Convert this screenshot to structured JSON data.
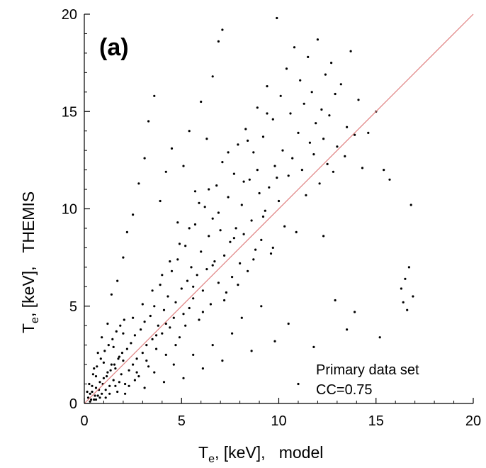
{
  "chart_data": {
    "type": "scatter",
    "panel_label": "(a)",
    "xlabel": {
      "base": "T",
      "sub": "e",
      "rest": ", [keV],   model"
    },
    "ylabel": {
      "base": "T",
      "sub": "e",
      "rest": ", [keV],   THEMIS"
    },
    "xlim": [
      0,
      20
    ],
    "ylim": [
      0,
      20
    ],
    "xticks": [
      0,
      5,
      10,
      15,
      20
    ],
    "yticks": [
      0,
      5,
      10,
      15,
      20
    ],
    "grid": false,
    "annotations": [
      "Primary data set",
      "CC=0.75"
    ],
    "reference_line": {
      "kind": "y=x",
      "color": "#e08080"
    },
    "point_color": "#000000",
    "points": [
      [
        0.2,
        0.3
      ],
      [
        0.3,
        0.1
      ],
      [
        0.4,
        0.6
      ],
      [
        0.5,
        0.2
      ],
      [
        0.6,
        0.8
      ],
      [
        0.7,
        0.4
      ],
      [
        0.8,
        1.1
      ],
      [
        0.9,
        0.5
      ],
      [
        1.0,
        1.3
      ],
      [
        1.1,
        0.7
      ],
      [
        1.2,
        1.6
      ],
      [
        1.3,
        0.9
      ],
      [
        1.4,
        2.0
      ],
      [
        1.5,
        1.2
      ],
      [
        1.6,
        1.8
      ],
      [
        1.7,
        0.6
      ],
      [
        1.8,
        2.4
      ],
      [
        1.9,
        1.5
      ],
      [
        2.0,
        2.2
      ],
      [
        2.1,
        1.0
      ],
      [
        2.2,
        2.8
      ],
      [
        2.3,
        1.7
      ],
      [
        2.4,
        3.1
      ],
      [
        2.5,
        2.0
      ],
      [
        2.6,
        3.5
      ],
      [
        2.7,
        2.3
      ],
      [
        2.8,
        1.4
      ],
      [
        2.9,
        3.8
      ],
      [
        3.0,
        2.6
      ],
      [
        3.1,
        4.2
      ],
      [
        3.2,
        3.0
      ],
      [
        3.3,
        1.9
      ],
      [
        3.4,
        4.5
      ],
      [
        3.5,
        3.3
      ],
      [
        3.6,
        5.0
      ],
      [
        3.7,
        2.8
      ],
      [
        3.8,
        4.0
      ],
      [
        3.9,
        6.1
      ],
      [
        4.0,
        3.6
      ],
      [
        4.1,
        4.8
      ],
      [
        4.2,
        2.5
      ],
      [
        4.3,
        5.5
      ],
      [
        4.4,
        3.9
      ],
      [
        4.5,
        6.8
      ],
      [
        4.6,
        4.4
      ],
      [
        4.7,
        5.2
      ],
      [
        4.8,
        7.4
      ],
      [
        4.9,
        3.4
      ],
      [
        5.0,
        5.9
      ],
      [
        5.1,
        4.6
      ],
      [
        5.2,
        8.1
      ],
      [
        5.3,
        6.3
      ],
      [
        5.4,
        4.9
      ],
      [
        5.5,
        7.0
      ],
      [
        5.6,
        5.4
      ],
      [
        5.7,
        9.2
      ],
      [
        5.8,
        6.6
      ],
      [
        5.9,
        4.3
      ],
      [
        6.0,
        7.8
      ],
      [
        6.1,
        5.8
      ],
      [
        6.2,
        10.1
      ],
      [
        6.3,
        6.9
      ],
      [
        6.4,
        8.6
      ],
      [
        6.5,
        5.1
      ],
      [
        6.6,
        9.5
      ],
      [
        6.7,
        7.3
      ],
      [
        6.8,
        11.2
      ],
      [
        6.9,
        6.2
      ],
      [
        7.0,
        8.9
      ],
      [
        7.1,
        12.4
      ],
      [
        7.2,
        7.6
      ],
      [
        7.3,
        5.7
      ],
      [
        7.4,
        10.6
      ],
      [
        7.5,
        8.3
      ],
      [
        7.6,
        6.5
      ],
      [
        7.7,
        11.8
      ],
      [
        7.8,
        9.0
      ],
      [
        7.9,
        13.3
      ],
      [
        8.0,
        7.2
      ],
      [
        8.1,
        10.2
      ],
      [
        8.2,
        8.7
      ],
      [
        8.3,
        14.1
      ],
      [
        8.4,
        6.8
      ],
      [
        8.5,
        11.5
      ],
      [
        8.6,
        9.4
      ],
      [
        8.7,
        12.9
      ],
      [
        8.8,
        7.9
      ],
      [
        8.9,
        15.2
      ],
      [
        9.0,
        10.8
      ],
      [
        9.1,
        8.4
      ],
      [
        9.2,
        13.7
      ],
      [
        9.3,
        9.9
      ],
      [
        9.4,
        16.3
      ],
      [
        9.5,
        11.1
      ],
      [
        9.6,
        7.7
      ],
      [
        9.7,
        14.6
      ],
      [
        9.8,
        12.2
      ],
      [
        9.9,
        19.8
      ],
      [
        10.0,
        10.4
      ],
      [
        10.1,
        15.8
      ],
      [
        10.2,
        13.0
      ],
      [
        10.3,
        9.1
      ],
      [
        10.4,
        17.2
      ],
      [
        10.5,
        11.7
      ],
      [
        10.6,
        14.9
      ],
      [
        10.7,
        12.6
      ],
      [
        10.8,
        18.3
      ],
      [
        10.9,
        8.8
      ],
      [
        11.0,
        13.9
      ],
      [
        11.1,
        16.6
      ],
      [
        11.2,
        12.0
      ],
      [
        11.3,
        15.4
      ],
      [
        11.4,
        10.7
      ],
      [
        11.5,
        17.8
      ],
      [
        11.6,
        13.4
      ],
      [
        11.7,
        16.0
      ],
      [
        11.8,
        12.8
      ],
      [
        11.9,
        14.4
      ],
      [
        12.0,
        18.7
      ],
      [
        12.1,
        11.3
      ],
      [
        12.2,
        15.1
      ],
      [
        12.3,
        13.6
      ],
      [
        12.4,
        16.9
      ],
      [
        12.5,
        12.3
      ],
      [
        12.6,
        14.8
      ],
      [
        12.7,
        17.5
      ],
      [
        12.8,
        11.9
      ],
      [
        12.9,
        15.9
      ],
      [
        13.0,
        13.2
      ],
      [
        13.2,
        16.4
      ],
      [
        13.4,
        12.7
      ],
      [
        13.5,
        14.2
      ],
      [
        13.7,
        18.1
      ],
      [
        13.9,
        13.8
      ],
      [
        14.1,
        15.6
      ],
      [
        14.3,
        12.1
      ],
      [
        14.6,
        13.9
      ],
      [
        15.0,
        15.0
      ],
      [
        15.4,
        12.0
      ],
      [
        15.7,
        11.5
      ],
      [
        16.3,
        5.9
      ],
      [
        16.4,
        5.2
      ],
      [
        16.5,
        6.4
      ],
      [
        16.6,
        4.8
      ],
      [
        16.7,
        7.0
      ],
      [
        16.8,
        10.2
      ],
      [
        16.9,
        5.5
      ],
      [
        15.2,
        3.4
      ],
      [
        13.9,
        4.7
      ],
      [
        13.5,
        3.8
      ],
      [
        12.9,
        5.3
      ],
      [
        12.3,
        8.6
      ],
      [
        11.8,
        2.9
      ],
      [
        11.0,
        1.0
      ],
      [
        10.5,
        4.1
      ],
      [
        9.8,
        3.2
      ],
      [
        9.1,
        5.0
      ],
      [
        8.6,
        2.7
      ],
      [
        8.1,
        4.4
      ],
      [
        7.6,
        3.6
      ],
      [
        7.1,
        2.2
      ],
      [
        6.6,
        3.0
      ],
      [
        6.1,
        1.8
      ],
      [
        5.6,
        2.5
      ],
      [
        5.1,
        1.3
      ],
      [
        4.6,
        2.0
      ],
      [
        4.1,
        1.1
      ],
      [
        3.6,
        1.6
      ],
      [
        3.1,
        0.8
      ],
      [
        2.6,
        1.2
      ],
      [
        2.1,
        0.5
      ],
      [
        1.6,
        0.9
      ],
      [
        1.1,
        0.3
      ],
      [
        0.6,
        0.2
      ],
      [
        0.3,
        0.5
      ],
      [
        0.5,
        1.8
      ],
      [
        0.7,
        2.6
      ],
      [
        0.9,
        3.4
      ],
      [
        1.2,
        4.1
      ],
      [
        1.4,
        5.6
      ],
      [
        1.7,
        6.3
      ],
      [
        2.0,
        7.5
      ],
      [
        2.2,
        8.8
      ],
      [
        2.5,
        9.7
      ],
      [
        2.8,
        11.3
      ],
      [
        3.1,
        12.6
      ],
      [
        3.3,
        14.5
      ],
      [
        3.6,
        15.8
      ],
      [
        3.9,
        10.4
      ],
      [
        4.2,
        11.9
      ],
      [
        4.5,
        13.1
      ],
      [
        4.8,
        9.3
      ],
      [
        5.1,
        12.2
      ],
      [
        5.4,
        14.0
      ],
      [
        5.7,
        10.9
      ],
      [
        6.0,
        15.5
      ],
      [
        6.3,
        13.6
      ],
      [
        6.6,
        16.8
      ],
      [
        6.9,
        18.6
      ],
      [
        7.1,
        19.2
      ],
      [
        0.4,
        0.9
      ],
      [
        0.6,
        1.4
      ],
      [
        0.8,
        0.3
      ],
      [
        1.0,
        2.1
      ],
      [
        1.3,
        0.5
      ],
      [
        1.5,
        2.9
      ],
      [
        1.8,
        1.1
      ],
      [
        2.0,
        3.6
      ],
      [
        2.3,
        0.9
      ],
      [
        2.5,
        4.4
      ],
      [
        2.7,
        1.6
      ],
      [
        3.0,
        5.1
      ],
      [
        3.2,
        2.2
      ],
      [
        3.5,
        5.8
      ],
      [
        3.7,
        3.5
      ],
      [
        4.0,
        6.6
      ],
      [
        4.2,
        4.1
      ],
      [
        4.4,
        7.3
      ],
      [
        4.7,
        3.0
      ],
      [
        4.9,
        8.2
      ],
      [
        5.2,
        4.0
      ],
      [
        5.4,
        9.0
      ],
      [
        5.6,
        6.0
      ],
      [
        5.9,
        10.3
      ],
      [
        6.1,
        4.7
      ],
      [
        6.4,
        11.0
      ],
      [
        6.6,
        7.1
      ],
      [
        6.9,
        9.8
      ],
      [
        7.2,
        5.3
      ],
      [
        7.4,
        12.9
      ],
      [
        7.7,
        8.5
      ],
      [
        7.9,
        6.1
      ],
      [
        8.2,
        11.4
      ],
      [
        8.4,
        13.5
      ],
      [
        8.7,
        7.4
      ],
      [
        8.9,
        12.0
      ],
      [
        9.2,
        9.6
      ],
      [
        9.4,
        14.9
      ],
      [
        9.7,
        8.0
      ],
      [
        9.9,
        11.6
      ],
      [
        0.15,
        0.6
      ],
      [
        0.25,
        1.0
      ],
      [
        0.35,
        0.2
      ],
      [
        0.45,
        1.5
      ],
      [
        0.55,
        0.4
      ],
      [
        0.65,
        1.9
      ],
      [
        0.75,
        0.7
      ],
      [
        0.85,
        2.3
      ],
      [
        0.95,
        1.0
      ],
      [
        1.05,
        2.7
      ],
      [
        1.15,
        1.4
      ],
      [
        1.25,
        3.0
      ],
      [
        1.35,
        1.7
      ],
      [
        1.45,
        3.3
      ],
      [
        1.55,
        2.0
      ],
      [
        1.65,
        3.7
      ],
      [
        1.75,
        2.3
      ],
      [
        1.85,
        4.0
      ],
      [
        1.95,
        2.6
      ],
      [
        2.05,
        4.3
      ]
    ]
  }
}
